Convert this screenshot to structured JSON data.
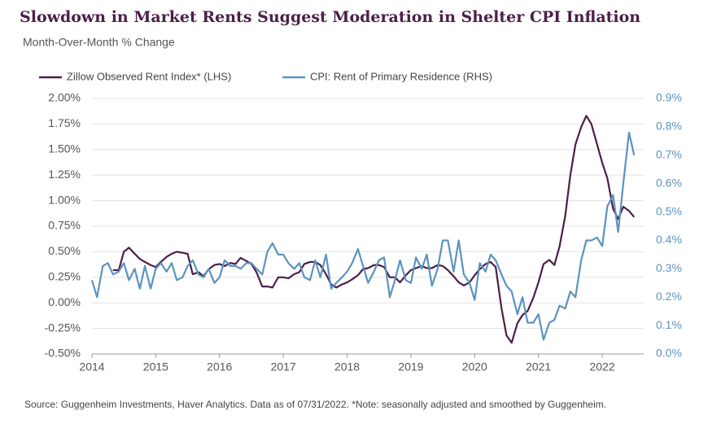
{
  "chart_data": {
    "type": "line",
    "title": "Slowdown in Market Rents Suggest Moderation in Shelter CPI Inflation",
    "subtitle": "Month-Over-Month % Change",
    "source": "Source: Guggenheim Investments, Haver Analytics. Data as of 07/31/2022. *Note: seasonally adjusted and smoothed by Guggenheim.",
    "legend": "top-left",
    "x": [
      2014,
      2014.08,
      2014.17,
      2014.25,
      2014.33,
      2014.42,
      2014.5,
      2014.58,
      2014.67,
      2014.75,
      2014.83,
      2014.92,
      2015,
      2015.08,
      2015.17,
      2015.25,
      2015.33,
      2015.42,
      2015.5,
      2015.58,
      2015.67,
      2015.75,
      2015.83,
      2015.92,
      2016,
      2016.08,
      2016.17,
      2016.25,
      2016.33,
      2016.42,
      2016.5,
      2016.58,
      2016.67,
      2016.75,
      2016.83,
      2016.92,
      2017,
      2017.08,
      2017.17,
      2017.25,
      2017.33,
      2017.42,
      2017.5,
      2017.58,
      2017.67,
      2017.75,
      2017.83,
      2017.92,
      2018,
      2018.08,
      2018.17,
      2018.25,
      2018.33,
      2018.42,
      2018.5,
      2018.58,
      2018.67,
      2018.75,
      2018.83,
      2018.92,
      2019,
      2019.08,
      2019.17,
      2019.25,
      2019.33,
      2019.42,
      2019.5,
      2019.58,
      2019.67,
      2019.75,
      2019.83,
      2019.92,
      2020,
      2020.08,
      2020.17,
      2020.25,
      2020.33,
      2020.42,
      2020.5,
      2020.58,
      2020.67,
      2020.75,
      2020.83,
      2020.92,
      2021,
      2021.08,
      2021.17,
      2021.25,
      2021.33,
      2021.42,
      2021.5,
      2021.58,
      2021.67,
      2021.75,
      2021.83,
      2021.92,
      2022,
      2022.08,
      2022.17,
      2022.25,
      2022.33,
      2022.42,
      2022.5
    ],
    "xlim": [
      2014,
      2022.65
    ],
    "xticks": [
      2014,
      2015,
      2016,
      2017,
      2018,
      2019,
      2020,
      2021,
      2022
    ],
    "ylim": [
      -0.5,
      2.0
    ],
    "yticks": [
      {
        "value": -0.5,
        "label": "-0.50%"
      },
      {
        "value": -0.25,
        "label": "-0.25%"
      },
      {
        "value": 0,
        "label": "0.00%"
      },
      {
        "value": 0.25,
        "label": "0.25%"
      },
      {
        "value": 0.5,
        "label": "0.50%"
      },
      {
        "value": 0.75,
        "label": "0.75%"
      },
      {
        "value": 1.0,
        "label": "1.00%"
      },
      {
        "value": 1.25,
        "label": "1.25%"
      },
      {
        "value": 1.5,
        "label": "1.50%"
      },
      {
        "value": 1.75,
        "label": "1.75%"
      },
      {
        "value": 2.0,
        "label": "2.00%"
      }
    ],
    "y2lim": [
      0,
      0.9
    ],
    "y2ticks": [
      {
        "value": 0,
        "label": "0.0%"
      },
      {
        "value": 0.1,
        "label": "0.1%"
      },
      {
        "value": 0.2,
        "label": "0.2%"
      },
      {
        "value": 0.3,
        "label": "0.3%"
      },
      {
        "value": 0.4,
        "label": "0.4%"
      },
      {
        "value": 0.5,
        "label": "0.5%"
      },
      {
        "value": 0.6,
        "label": "0.6%"
      },
      {
        "value": 0.7,
        "label": "0.7%"
      },
      {
        "value": 0.8,
        "label": "0.8%"
      },
      {
        "value": 0.9,
        "label": "0.9%"
      }
    ],
    "grid": true,
    "series": [
      {
        "name": "Zillow Observed Rent Index* (LHS)",
        "color": "#4b1f47",
        "axis": "y",
        "values": [
          null,
          null,
          null,
          null,
          0.32,
          0.32,
          0.5,
          0.54,
          0.48,
          0.43,
          0.4,
          0.37,
          0.35,
          0.4,
          0.45,
          0.48,
          0.5,
          0.49,
          0.48,
          0.28,
          0.3,
          0.26,
          0.33,
          0.37,
          0.38,
          0.36,
          0.39,
          0.38,
          0.44,
          0.41,
          0.38,
          0.3,
          0.16,
          0.16,
          0.15,
          0.25,
          0.25,
          0.24,
          0.28,
          0.3,
          0.38,
          0.4,
          0.4,
          0.37,
          0.28,
          0.18,
          0.15,
          0.18,
          0.2,
          0.23,
          0.27,
          0.33,
          0.34,
          0.37,
          0.37,
          0.35,
          0.25,
          0.25,
          0.2,
          0.27,
          0.32,
          0.34,
          0.36,
          0.34,
          0.34,
          0.37,
          0.36,
          0.32,
          0.26,
          0.2,
          0.17,
          0.2,
          0.27,
          0.33,
          0.38,
          0.4,
          0.35,
          -0.05,
          -0.32,
          -0.39,
          -0.2,
          -0.12,
          -0.08,
          0.05,
          0.2,
          0.38,
          0.42,
          0.37,
          0.55,
          0.85,
          1.25,
          1.55,
          1.72,
          1.83,
          1.75,
          1.55,
          1.37,
          1.22,
          0.92,
          0.82,
          0.94,
          0.9,
          0.84
        ]
      },
      {
        "name": "CPI: Rent of Primary Residence (RHS)",
        "color": "#5b93c0",
        "axis": "y2",
        "values": [
          0.26,
          0.2,
          0.31,
          0.32,
          0.28,
          0.29,
          0.32,
          0.26,
          0.3,
          0.23,
          0.31,
          0.23,
          0.3,
          0.32,
          0.29,
          0.32,
          0.26,
          0.27,
          0.31,
          0.33,
          0.28,
          0.27,
          0.3,
          0.25,
          0.27,
          0.33,
          0.31,
          0.31,
          0.3,
          0.32,
          0.32,
          0.3,
          0.28,
          0.36,
          0.39,
          0.35,
          0.35,
          0.32,
          0.3,
          0.32,
          0.27,
          0.26,
          0.33,
          0.27,
          0.35,
          0.23,
          0.25,
          0.27,
          0.29,
          0.32,
          0.37,
          0.31,
          0.25,
          0.29,
          0.33,
          0.34,
          0.2,
          0.26,
          0.33,
          0.26,
          0.25,
          0.34,
          0.3,
          0.35,
          0.24,
          0.3,
          0.4,
          0.4,
          0.29,
          0.4,
          0.28,
          0.25,
          0.19,
          0.32,
          0.29,
          0.35,
          0.33,
          0.28,
          0.24,
          0.22,
          0.14,
          0.2,
          0.11,
          0.11,
          0.14,
          0.05,
          0.11,
          0.12,
          0.17,
          0.16,
          0.22,
          0.2,
          0.33,
          0.4,
          0.4,
          0.41,
          0.38,
          0.52,
          0.56,
          0.43,
          0.6,
          0.78,
          0.7
        ]
      }
    ]
  }
}
